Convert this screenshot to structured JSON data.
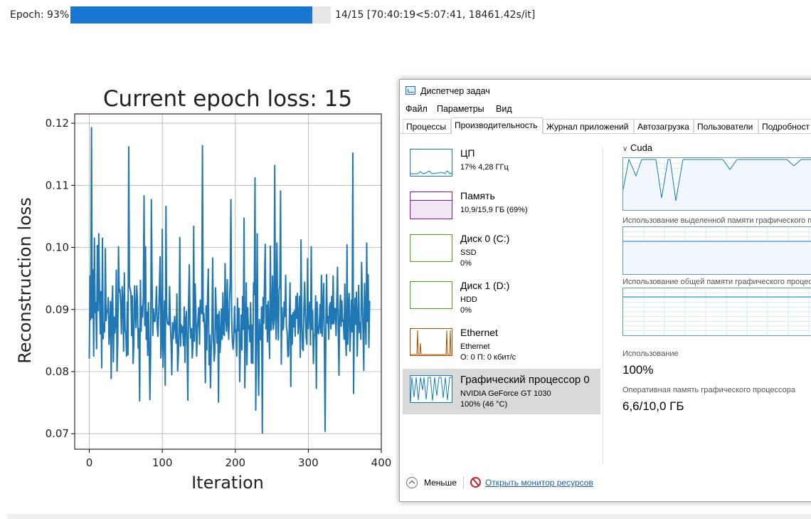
{
  "progress": {
    "label": "Epoch: 93%",
    "fraction": 0.93,
    "status": "14/15 [70:40:19<5:07:41, 18461.42s/it]",
    "bar_color": "#1976d2"
  },
  "chart_data": {
    "type": "line",
    "title": "Current epoch loss: 15",
    "xlabel": "Iteration",
    "ylabel": "Reconstruction loss",
    "xlim": [
      -20,
      400
    ],
    "ylim": [
      0.0675,
      0.1215
    ],
    "xticks": [
      0,
      100,
      200,
      300,
      400
    ],
    "yticks": [
      0.07,
      0.08,
      0.09,
      0.1,
      0.11,
      0.12
    ],
    "xtick_labels": [
      "0",
      "100",
      "200",
      "300",
      "400"
    ],
    "ytick_labels": [
      "0.07",
      "0.08",
      "0.09",
      "0.10",
      "0.11",
      "0.12"
    ],
    "grid": true,
    "line_color": "#1f77b4",
    "x_start": 0,
    "x_step": 1,
    "series": [
      {
        "values": [
          0.0821,
          0.0954,
          0.0884,
          0.1193,
          0.0887,
          0.0964,
          0.0825,
          0.1015,
          0.0895,
          0.0911,
          0.0837,
          0.1003,
          0.0898,
          0.1022,
          0.0924,
          0.0861,
          0.0929,
          0.0806,
          0.1015,
          0.0853,
          0.0877,
          0.0864,
          0.0998,
          0.0882,
          0.0898,
          0.0896,
          0.0919,
          0.0844,
          0.0869,
          0.0913,
          0.0789,
          0.0908,
          0.0938,
          0.0816,
          0.0888,
          0.0862,
          0.0878,
          0.0963,
          0.0801,
          0.0848,
          0.1001,
          0.0928,
          0.0932,
          0.0907,
          0.0861,
          0.0937,
          0.0915,
          0.0833,
          0.0959,
          0.0867,
          0.0862,
          0.0825,
          0.0912,
          0.0827,
          0.1162,
          0.0938,
          0.0933,
          0.0926,
          0.0858,
          0.0922,
          0.0813,
          0.0844,
          0.0938,
          0.0897,
          0.0871,
          0.0938,
          0.0914,
          0.0838,
          0.0869,
          0.0753,
          0.0947,
          0.0865,
          0.0905,
          0.0888,
          0.0921,
          0.1083,
          0.0874,
          0.1001,
          0.0852,
          0.0896,
          0.0826,
          0.0911,
          0.0848,
          0.0755,
          0.0829,
          0.1077,
          0.0947,
          0.0858,
          0.0901,
          0.0881,
          0.0881,
          0.0901,
          0.0937,
          0.0873,
          0.0857,
          0.0894,
          0.0936,
          0.0985,
          0.0822,
          0.0848,
          0.1029,
          0.0807,
          0.0865,
          0.0914,
          0.0778,
          0.1066,
          0.0894,
          0.0877,
          0.0879,
          0.0875,
          0.0937,
          0.0877,
          0.0846,
          0.0795,
          0.0879,
          0.0853,
          0.0873,
          0.0889,
          0.0863,
          0.0846,
          0.0925,
          0.0801,
          0.0824,
          0.0869,
          0.1016,
          0.0841,
          0.0875,
          0.0863,
          0.0872,
          0.0842,
          0.0904,
          0.0815,
          0.0883,
          0.0897,
          0.0835,
          0.0754,
          0.0912,
          0.0972,
          0.0875,
          0.0854,
          0.0869,
          0.0822,
          0.0843,
          0.1034,
          0.0849,
          0.0941,
          0.0895,
          0.0825,
          0.0867,
          0.0887,
          0.0903,
          0.0844,
          0.0915,
          0.0898,
          0.0893,
          0.1164,
          0.0881,
          0.0894,
          0.0868,
          0.0782,
          0.0906,
          0.0835,
          0.0923,
          0.0965,
          0.0811,
          0.0859,
          0.0774,
          0.0835,
          0.0868,
          0.0983,
          0.0853,
          0.0817,
          0.0833,
          0.0935,
          0.0888,
          0.0846,
          0.0892,
          0.0751,
          0.0897,
          0.0831,
          0.0851,
          0.0901,
          0.0852,
          0.0927,
          0.0861,
          0.0858,
          0.0974,
          0.0886,
          0.0865,
          0.0948,
          0.0877,
          0.0852,
          0.0911,
          0.0942,
          0.1077,
          0.0887,
          0.0849,
          0.0836,
          0.0855,
          0.0905,
          0.0863,
          0.0867,
          0.0825,
          0.0918,
          0.0866,
          0.0902,
          0.0784,
          0.0844,
          0.0891,
          0.0835,
          0.0921,
          0.0868,
          0.1047,
          0.0774,
          0.0853,
          0.0943,
          0.0811,
          0.0903,
          0.0869,
          0.0874,
          0.0848,
          0.0911,
          0.0814,
          0.0875,
          0.0813,
          0.0943,
          0.0924,
          0.1112,
          0.0738,
          0.0859,
          0.1022,
          0.0831,
          0.0762,
          0.0884,
          0.0857,
          0.0851,
          0.0904,
          0.0701,
          0.0919,
          0.0878,
          0.0945,
          0.1005,
          0.0869,
          0.0907,
          0.0848,
          0.0913,
          0.0867,
          0.0821,
          0.1002,
          0.0867,
          0.0885,
          0.0954,
          0.0868,
          0.0881,
          0.1132,
          0.0889,
          0.0852,
          0.1007,
          0.0898,
          0.0851,
          0.0933,
          0.0938,
          0.1091,
          0.0812,
          0.0903,
          0.0867,
          0.0871,
          0.0912,
          0.0889,
          0.0955,
          0.0872,
          0.0864,
          0.0824,
          0.0826,
          0.0883,
          0.0943,
          0.0776,
          0.0891,
          0.0844,
          0.0895,
          0.0872,
          0.0898,
          0.0857,
          0.0921,
          0.0886,
          0.0926,
          0.0861,
          0.0887,
          0.0921,
          0.0823,
          0.1012,
          0.0882,
          0.0837,
          0.0834,
          0.0903,
          0.0944,
          0.0891,
          0.0856,
          0.0844,
          0.0982,
          0.0869,
          0.0898,
          0.0912,
          0.0843,
          0.1001,
          0.0868,
          0.0898,
          0.0813,
          0.0856,
          0.0862,
          0.0922,
          0.0773,
          0.0912,
          0.0867,
          0.0861,
          0.0874,
          0.0908,
          0.0862,
          0.0955,
          0.0857,
          0.0905,
          0.0942,
          0.0848,
          0.0704,
          0.0863,
          0.0956,
          0.0878,
          0.0889,
          0.0852,
          0.0904,
          0.0911,
          0.0869,
          0.0921,
          0.0877,
          0.0954,
          0.0877,
          0.0902,
          0.0901,
          0.0858,
          0.0911,
          0.0968,
          0.0867,
          0.0794,
          0.0898,
          0.0923,
          0.0873,
          0.0914,
          0.0881,
          0.0883,
          0.0852,
          0.0941,
          0.0854,
          0.0826,
          0.1004,
          0.0844,
          0.0903,
          0.0926,
          0.0833,
          0.0867,
          0.0915,
          0.0864,
          0.1152,
          0.0765,
          0.0883,
          0.0918,
          0.0876,
          0.0928,
          0.0825,
          0.0877,
          0.0939,
          0.0863,
          0.0879,
          0.0852,
          0.0976,
          0.0918,
          0.0864,
          0.0802,
          0.0942,
          0.0896,
          0.0844,
          0.1007,
          0.0881,
          0.0956,
          0.0839,
          0.0914
        ]
      }
    ]
  },
  "task_manager": {
    "title": "Диспетчер задач",
    "menu": [
      "Файл",
      "Параметры",
      "Вид"
    ],
    "tabs": [
      "Процессы",
      "Производительность",
      "Журнал приложений",
      "Автозагрузка",
      "Пользователи",
      "Подробност"
    ],
    "active_tab": 1,
    "devices": [
      {
        "name": "ЦП",
        "sub1": "17% 4,28 ГГц",
        "sub2": "",
        "color": "#117dbb",
        "kind": "cpu"
      },
      {
        "name": "Память",
        "sub1": "10,9/15,9 ГБ (69%)",
        "sub2": "",
        "color": "#8b12ae",
        "kind": "mem",
        "fill": 0.69
      },
      {
        "name": "Диск 0 (C:)",
        "sub1": "SSD",
        "sub2": "0%",
        "color": "#4da60c",
        "kind": "disk"
      },
      {
        "name": "Диск 1 (D:)",
        "sub1": "HDD",
        "sub2": "0%",
        "color": "#4da60c",
        "kind": "disk"
      },
      {
        "name": "Ethernet",
        "sub1": "Ethernet",
        "sub2": "О: 0 П: 0 кбит/с",
        "color": "#a74f01",
        "kind": "net"
      },
      {
        "name": "Графический процессор 0",
        "sub1": "NVIDIA GeForce GT 1030",
        "sub2": "100%  (46 °C)",
        "color": "#117dbb",
        "kind": "gpu",
        "selected": true
      }
    ],
    "gpu_panel": {
      "engine_label": "Cuda",
      "dedicated_label": "Использование выделенной памяти графического процессора",
      "shared_label": "Использование общей памяти графического процессора",
      "usage_label": "Использование",
      "usage_value": "100%",
      "memory_label": "Оперативная память графического процессора",
      "memory_value": "6,6/10,0 ГБ",
      "graph_color": "#117dbb"
    },
    "footer": {
      "less_label": "Меньше",
      "monitor_link": "Открыть монитор ресурсов"
    }
  }
}
